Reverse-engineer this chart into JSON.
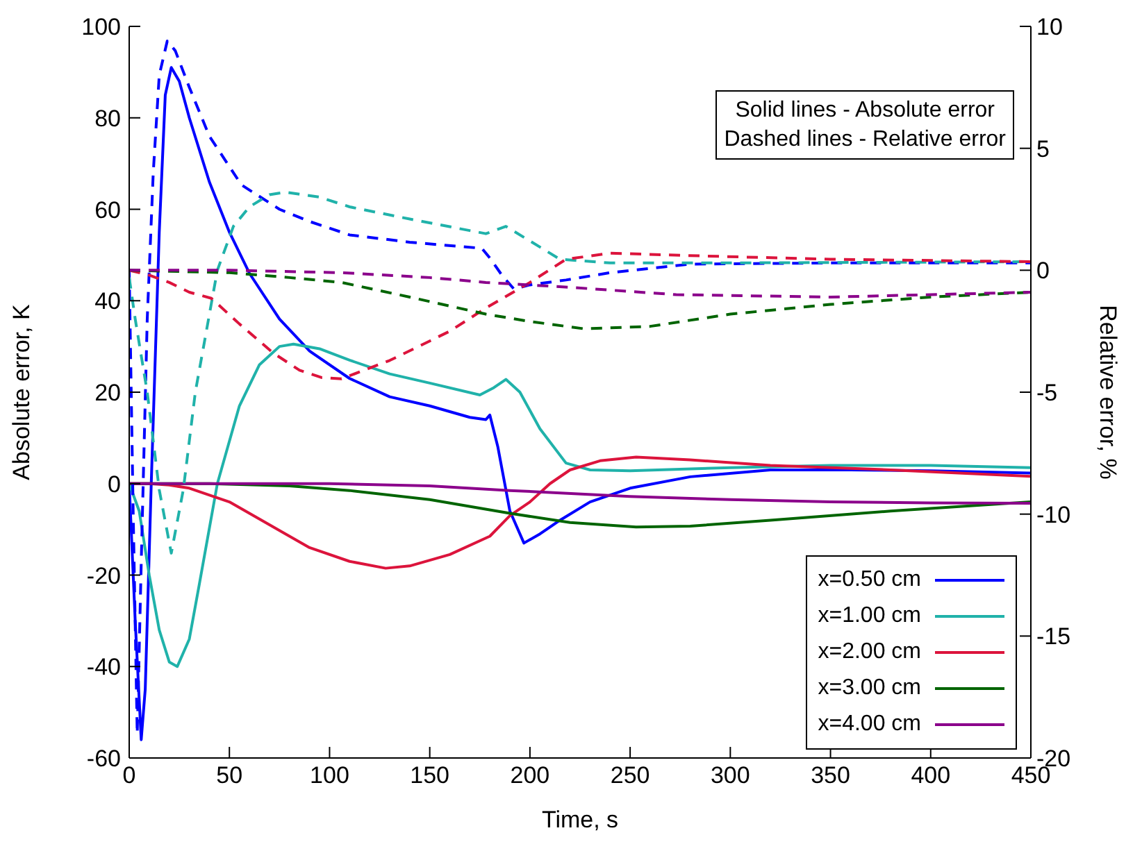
{
  "chart_data": {
    "type": "line",
    "xlabel": "Time, s",
    "ylabel": "Absolute error, K",
    "y2label": "Relative error, %",
    "annotations": [
      "Solid lines - Absolute error",
      "Dashed lines - Relative error"
    ],
    "xlim": [
      0,
      450
    ],
    "xticks": [
      0,
      50,
      100,
      150,
      200,
      250,
      300,
      350,
      400,
      450
    ],
    "ylim": [
      -60,
      100
    ],
    "yticks": [
      -60,
      -40,
      -20,
      0,
      20,
      40,
      60,
      80,
      100
    ],
    "y2lim": [
      -20,
      10
    ],
    "y2ticks": [
      -20,
      -15,
      -10,
      -5,
      0,
      5,
      10
    ],
    "grid": false,
    "legend": "bottom right",
    "marker": "none",
    "series": [
      {
        "name": "x=0.50 cm",
        "color": "#0000ff",
        "line_style": "solid",
        "x": [
          0,
          3,
          6,
          8,
          11,
          15,
          18,
          21,
          25,
          30,
          40,
          50,
          60,
          75,
          90,
          110,
          130,
          150,
          170,
          178,
          180,
          184,
          190,
          197,
          205,
          215,
          230,
          250,
          280,
          320,
          360,
          400,
          450
        ],
        "values": [
          0,
          -30,
          -56,
          -45,
          0,
          55,
          85,
          91,
          88,
          80,
          66,
          55,
          46,
          36,
          29,
          23,
          19,
          17,
          14.5,
          14,
          15,
          8,
          -6,
          -13,
          -11,
          -8,
          -4,
          -1,
          1.5,
          3,
          3,
          2.8,
          2.3
        ]
      },
      {
        "name": "x=1.00 cm",
        "color": "#20b2aa",
        "line_style": "solid",
        "x": [
          0,
          5,
          10,
          15,
          20,
          24,
          30,
          35,
          44,
          55,
          65,
          75,
          82,
          95,
          110,
          130,
          150,
          175,
          182,
          188,
          195,
          205,
          218,
          230,
          250,
          300,
          350,
          400,
          450
        ],
        "values": [
          0,
          -6,
          -20,
          -32,
          -39,
          -40,
          -34,
          -22,
          0,
          17,
          26,
          30,
          30.5,
          29.5,
          27,
          24,
          22,
          19.4,
          21,
          22.8,
          20,
          12,
          4.5,
          3,
          2.8,
          3.5,
          4,
          4,
          3.5
        ]
      },
      {
        "name": "x=2.00 cm",
        "color": "#dc143c",
        "line_style": "solid",
        "x": [
          0,
          10,
          20,
          30,
          50,
          70,
          90,
          110,
          128,
          140,
          160,
          180,
          190,
          200,
          210,
          220,
          235,
          253,
          280,
          320,
          380,
          450
        ],
        "values": [
          0,
          0,
          -0.3,
          -1,
          -4,
          -9,
          -14,
          -17,
          -18.5,
          -18,
          -15.5,
          -11.5,
          -7,
          -4,
          0,
          3,
          5,
          5.8,
          5.2,
          4,
          3,
          1.6
        ]
      },
      {
        "name": "x=3.00 cm",
        "color": "#006400",
        "line_style": "solid",
        "x": [
          0,
          40,
          80,
          110,
          150,
          190,
          220,
          253,
          280,
          320,
          380,
          450
        ],
        "values": [
          0,
          0,
          -0.5,
          -1.5,
          -3.5,
          -6.5,
          -8.5,
          -9.5,
          -9.3,
          -8,
          -6,
          -4
        ]
      },
      {
        "name": "x=4.00 cm",
        "color": "#8b008b",
        "line_style": "solid",
        "x": [
          0,
          100,
          150,
          190,
          250,
          300,
          350,
          400,
          450
        ],
        "values": [
          0,
          0,
          -0.5,
          -1.5,
          -2.8,
          -3.5,
          -4,
          -4.2,
          -4.3
        ]
      },
      {
        "color": "#0000ff",
        "line_style": "dashed",
        "axis": "y2",
        "x": [
          0,
          2,
          4,
          6,
          9,
          12,
          15,
          19,
          23,
          30,
          40,
          56,
          75,
          90,
          110,
          140,
          176,
          180,
          186,
          192,
          200,
          218,
          240,
          280,
          350,
          450
        ],
        "values": [
          0,
          -10,
          -19,
          -12,
          -2,
          4,
          8,
          9.4,
          9,
          7.5,
          5.5,
          3.5,
          2.5,
          2,
          1.45,
          1.15,
          0.9,
          0.5,
          -0.2,
          -0.77,
          -0.6,
          -0.4,
          -0.1,
          0.25,
          0.3,
          0.3
        ]
      },
      {
        "color": "#20b2aa",
        "line_style": "dashed",
        "axis": "y2",
        "x": [
          0,
          3,
          9,
          15,
          21,
          27,
          33,
          44,
          52,
          60,
          70,
          78,
          95,
          110,
          140,
          178,
          188,
          200,
          215,
          240,
          300,
          450
        ],
        "values": [
          -0.3,
          -2,
          -5,
          -9,
          -11.6,
          -9,
          -5,
          0,
          1.8,
          2.6,
          3.1,
          3.2,
          3,
          2.6,
          2.1,
          1.5,
          1.8,
          1.2,
          0.45,
          0.3,
          0.3,
          0.35
        ]
      },
      {
        "color": "#dc143c",
        "line_style": "dashed",
        "axis": "y2",
        "x": [
          0,
          10,
          20,
          30,
          41,
          55,
          72,
          85,
          96,
          106,
          130,
          160,
          178,
          200,
          218,
          240,
          280,
          350,
          450
        ],
        "values": [
          0,
          -0.2,
          -0.5,
          -0.9,
          -1.15,
          -2.2,
          -3.4,
          -4.1,
          -4.4,
          -4.45,
          -3.7,
          -2.5,
          -1.55,
          -0.5,
          0.45,
          0.7,
          0.6,
          0.45,
          0.35
        ]
      },
      {
        "color": "#006400",
        "line_style": "dashed",
        "axis": "y2",
        "x": [
          0,
          50,
          80,
          106,
          140,
          178,
          200,
          227,
          260,
          300,
          350,
          400,
          450
        ],
        "values": [
          0,
          -0.1,
          -0.3,
          -0.5,
          -1.1,
          -1.8,
          -2.1,
          -2.4,
          -2.3,
          -1.8,
          -1.4,
          -1.1,
          -0.9
        ]
      },
      {
        "color": "#8b008b",
        "line_style": "dashed",
        "axis": "y2",
        "x": [
          0,
          50,
          106,
          150,
          178,
          220,
          273,
          350,
          400,
          450
        ],
        "values": [
          0,
          0,
          -0.1,
          -0.3,
          -0.5,
          -0.7,
          -1,
          -1.1,
          -1,
          -0.9
        ]
      }
    ]
  }
}
